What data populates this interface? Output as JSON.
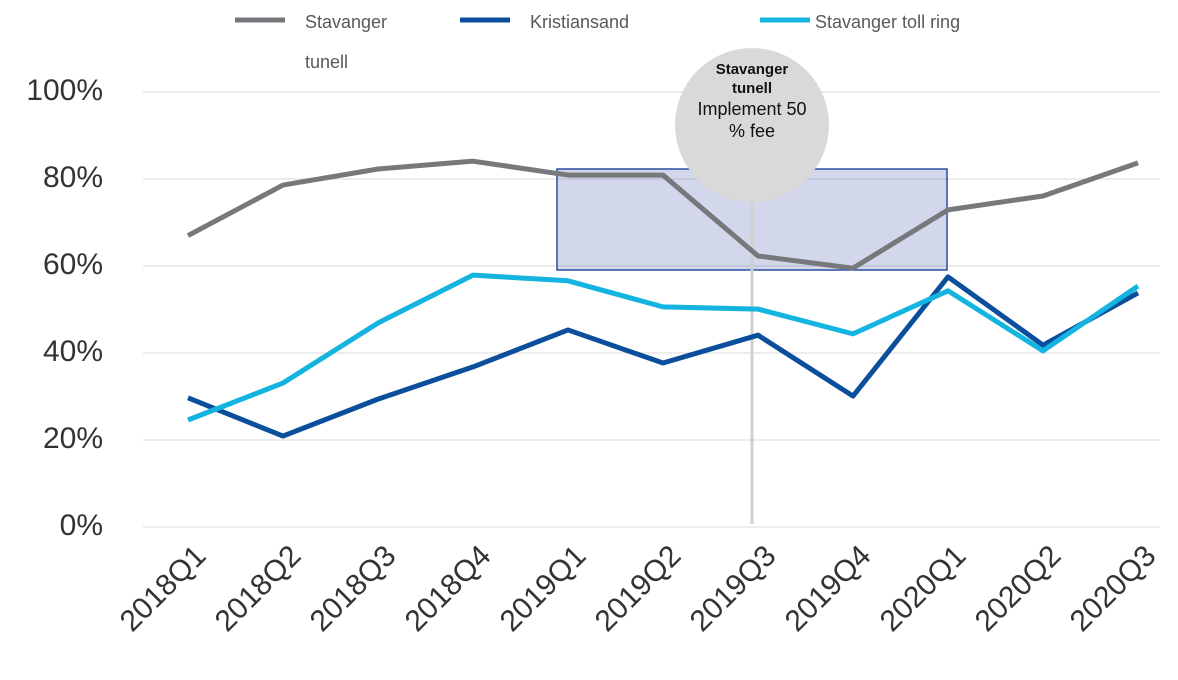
{
  "chart_data": {
    "type": "line",
    "categories": [
      "2018Q1",
      "2018Q2",
      "2018Q3",
      "2018Q4",
      "2019Q1",
      "2019Q2",
      "2019Q3",
      "2019Q4",
      "2020Q1",
      "2020Q2",
      "2020Q3"
    ],
    "series": [
      {
        "name": "Stavanger tunell",
        "color": "#77787b",
        "values": [
          67,
          78.6,
          82.3,
          84.1,
          80.9,
          80.9,
          62.3,
          59.5,
          72.9,
          76.1,
          83.7
        ]
      },
      {
        "name": "Kristiansand",
        "color": "#0b4f9c",
        "values": [
          29.7,
          20.9,
          29.4,
          36.8,
          45.3,
          37.7,
          44.1,
          30.1,
          57.5,
          41.8,
          53.8
        ]
      },
      {
        "name": "Stavanger toll ring",
        "color": "#14b4e0",
        "values": [
          24.6,
          33.1,
          46.9,
          57.9,
          56.6,
          50.6,
          50.1,
          44.4,
          54.3,
          40.5,
          55.4
        ]
      }
    ],
    "ylim": [
      0,
      100
    ],
    "yticks": [
      {
        "value": 0,
        "label": "0%"
      },
      {
        "value": 20,
        "label": "20%"
      },
      {
        "value": 40,
        "label": "40%"
      },
      {
        "value": 60,
        "label": "60%"
      },
      {
        "value": 80,
        "label": "80%"
      },
      {
        "value": 100,
        "label": "100%"
      }
    ],
    "grid": true,
    "legend": "top",
    "annotation": {
      "title": "Stavanger tunell",
      "text": "Implement 50 % fee"
    }
  }
}
